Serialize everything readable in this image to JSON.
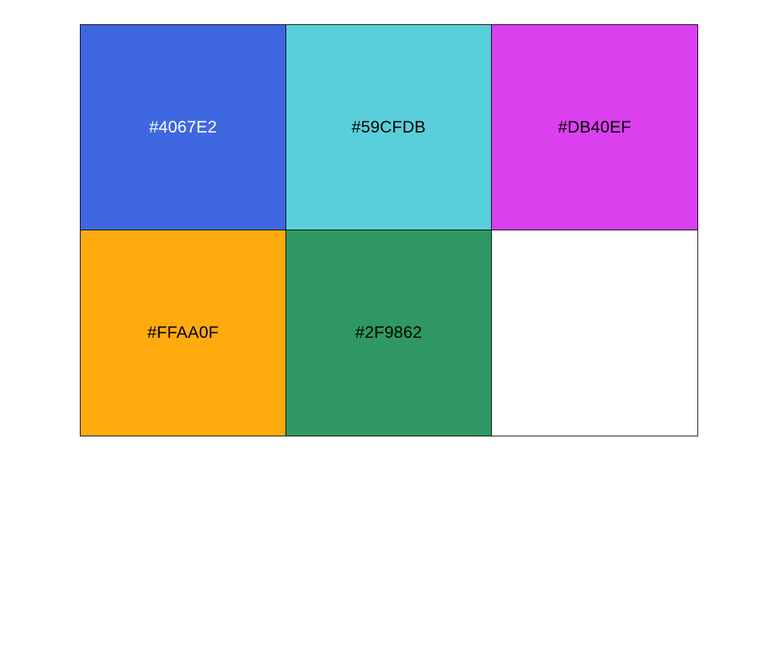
{
  "swatches": [
    {
      "label": "#4067E2",
      "color": "#4067E2",
      "text_color": "#FFFFFF"
    },
    {
      "label": "#59CFDB",
      "color": "#59CFDB",
      "text_color": "#000000"
    },
    {
      "label": "#DB40EF",
      "color": "#DB40EF",
      "text_color": "#000000"
    },
    {
      "label": "#FFAA0F",
      "color": "#FFAA0F",
      "text_color": "#000000"
    },
    {
      "label": "#2F9862",
      "color": "#2F9862",
      "text_color": "#000000"
    },
    {
      "label": "",
      "color": "#FFFFFF",
      "text_color": "#000000"
    }
  ]
}
